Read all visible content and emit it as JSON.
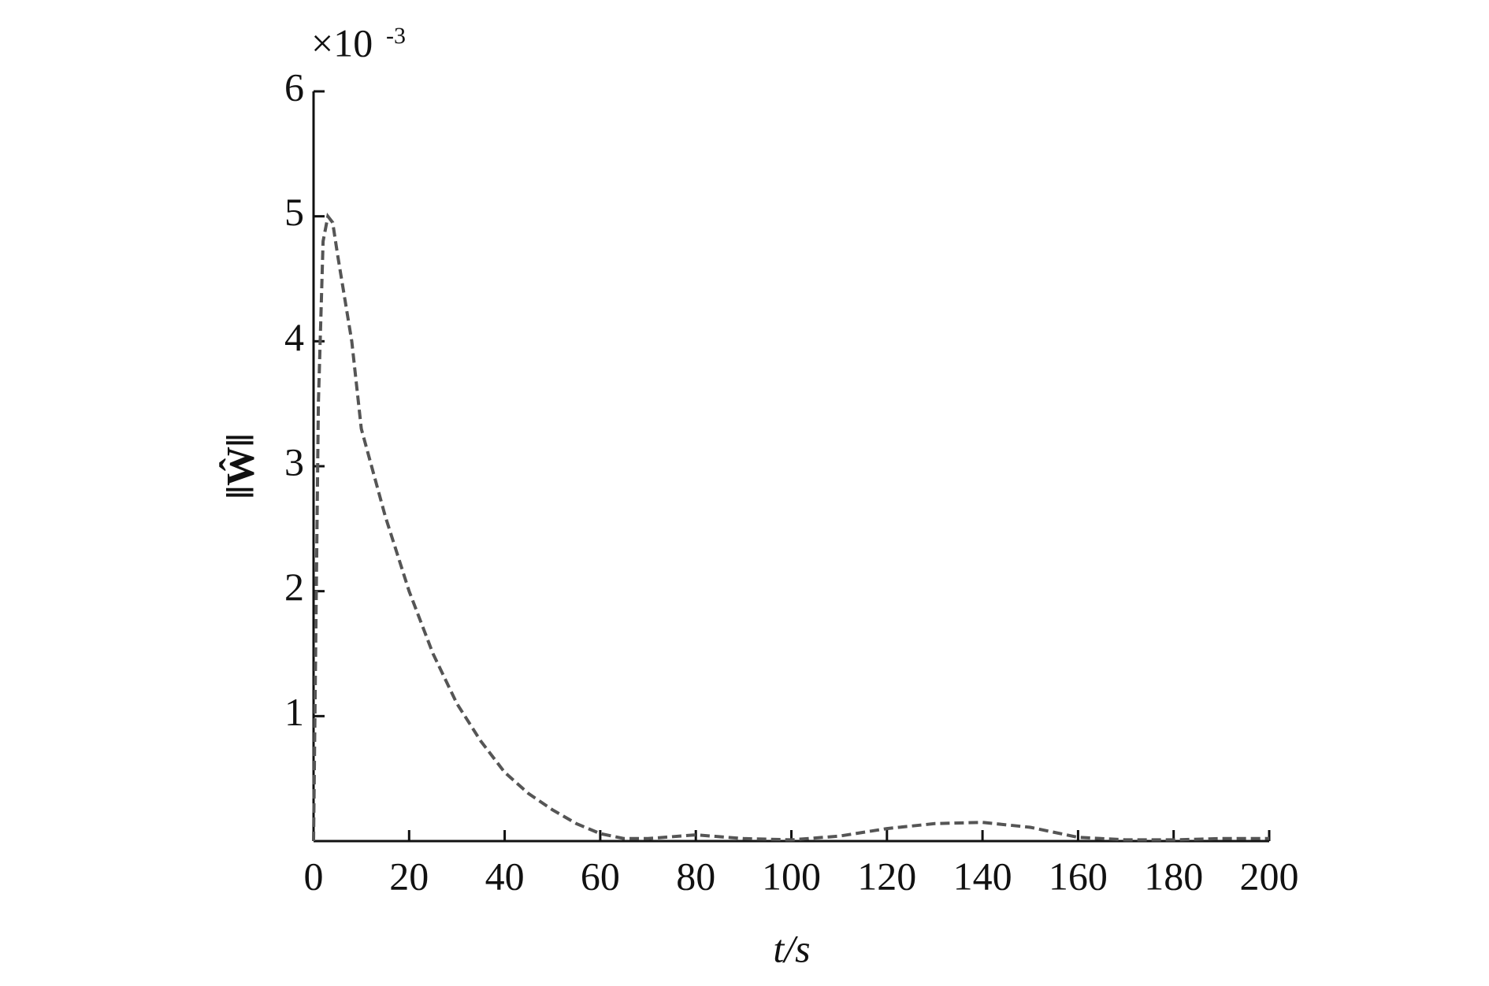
{
  "chart_data": {
    "type": "line",
    "y_multiplier": "×10",
    "y_multiplier_exponent": "-3",
    "ylabel": "‖Ŵ‖",
    "xlabel": "t/s",
    "x": [
      0,
      1,
      2,
      3,
      4,
      5,
      8,
      10,
      15,
      20,
      25,
      30,
      35,
      40,
      45,
      50,
      55,
      60,
      65,
      70,
      80,
      90,
      100,
      110,
      120,
      130,
      140,
      150,
      160,
      170,
      180,
      190,
      200
    ],
    "series": [
      {
        "name": "‖Ŵ‖",
        "color": "#555555",
        "values": [
          0,
          3.5,
          4.8,
          5.0,
          4.95,
          4.7,
          4.0,
          3.3,
          2.6,
          2.0,
          1.5,
          1.1,
          0.8,
          0.55,
          0.38,
          0.25,
          0.14,
          0.06,
          0.02,
          0.02,
          0.05,
          0.02,
          0.01,
          0.04,
          0.1,
          0.14,
          0.15,
          0.11,
          0.03,
          0.01,
          0.01,
          0.02,
          0.02
        ]
      }
    ],
    "xlim": [
      0,
      200
    ],
    "xticks": [
      0,
      20,
      40,
      60,
      80,
      100,
      120,
      140,
      160,
      180,
      200
    ],
    "ylim": [
      0,
      6
    ],
    "yticks": [
      1,
      2,
      3,
      4,
      5,
      6
    ]
  }
}
